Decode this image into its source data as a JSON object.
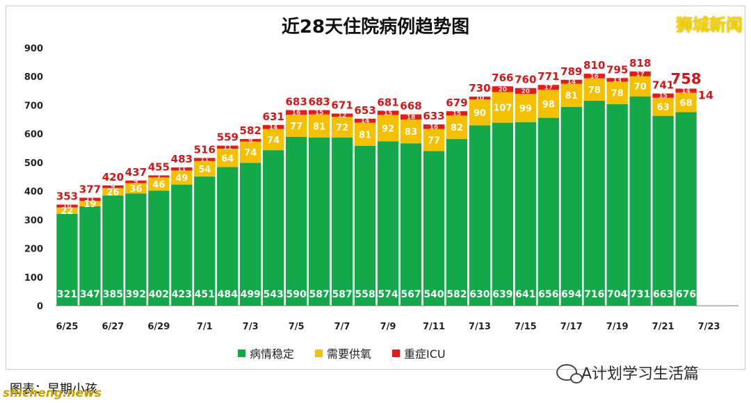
{
  "brand": "狮城新闻",
  "caption": "图表：早期小孩",
  "source": "shicheng.news",
  "watermark": "A计划学习生活篇",
  "legend": [
    {
      "label": "病情稳定",
      "color": "#13a84a"
    },
    {
      "label": "需要供氧",
      "color": "#f5c000"
    },
    {
      "label": "重症ICU",
      "color": "#e81919"
    }
  ],
  "chart_data": {
    "type": "bar",
    "stacked": true,
    "title": "近28天住院病例趋势图",
    "xlabel": "",
    "ylabel": "",
    "ylim": [
      0,
      900
    ],
    "yticks": [
      "0",
      "100",
      "200",
      "300",
      "400",
      "500",
      "600",
      "700",
      "800",
      "900"
    ],
    "xtick_labels": [
      "6/25",
      "6/27",
      "6/29",
      "7/1",
      "7/3",
      "7/5",
      "7/7",
      "7/9",
      "7/11",
      "7/13",
      "7/15",
      "7/17",
      "7/19",
      "7/21",
      "7/23"
    ],
    "categories": [
      "6/25",
      "6/26",
      "6/27",
      "6/28",
      "6/29",
      "6/30",
      "7/1",
      "7/2",
      "7/3",
      "7/4",
      "7/5",
      "7/6",
      "7/7",
      "7/8",
      "7/9",
      "7/10",
      "7/11",
      "7/12",
      "7/13",
      "7/14",
      "7/15",
      "7/16",
      "7/17",
      "7/18",
      "7/19",
      "7/20",
      "7/21",
      "7/22",
      "7/23"
    ],
    "series": [
      {
        "name": "病情稳定",
        "color": "#13a84a",
        "values": [
          321,
          347,
          385,
          392,
          402,
          423,
          451,
          484,
          499,
          543,
          590,
          587,
          587,
          558,
          574,
          567,
          540,
          582,
          630,
          639,
          641,
          656,
          694,
          716,
          704,
          731,
          663,
          676,
          null
        ]
      },
      {
        "name": "需要供氧",
        "color": "#f5c000",
        "values": [
          22,
          19,
          26,
          36,
          46,
          49,
          54,
          64,
          74,
          74,
          77,
          81,
          72,
          81,
          92,
          83,
          77,
          82,
          90,
          107,
          99,
          98,
          81,
          78,
          78,
          70,
          63,
          68,
          null
        ]
      },
      {
        "name": "重症ICU",
        "color": "#e81919",
        "values": [
          10,
          11,
          9,
          9,
          7,
          11,
          11,
          11,
          9,
          14,
          16,
          15,
          12,
          14,
          15,
          18,
          16,
          15,
          10,
          20,
          20,
          17,
          14,
          16,
          13,
          17,
          15,
          14,
          null
        ]
      }
    ],
    "totals": [
      353,
      377,
      420,
      437,
      455,
      483,
      516,
      559,
      582,
      631,
      683,
      683,
      671,
      653,
      681,
      668,
      633,
      679,
      730,
      766,
      760,
      771,
      789,
      810,
      795,
      818,
      741,
      758,
      null
    ],
    "highlight_total": "758",
    "highlight_icu": "14"
  }
}
